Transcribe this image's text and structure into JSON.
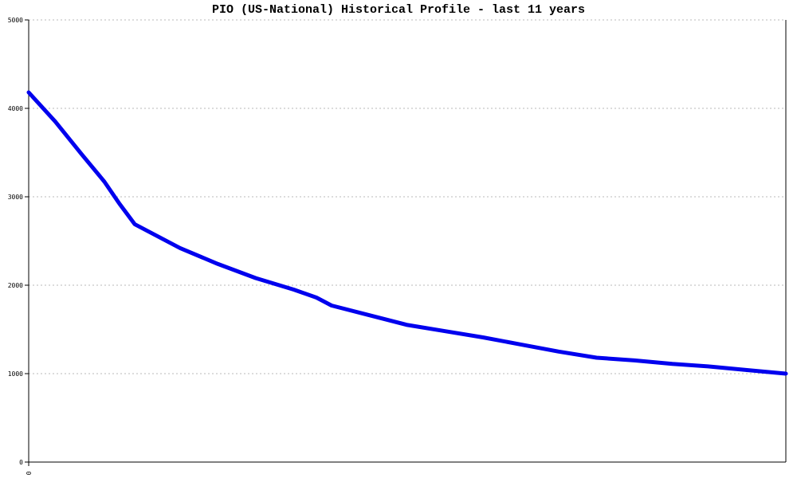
{
  "chart_data": {
    "type": "line",
    "title": "PIO (US-National) Historical Profile - last 11 years",
    "xlabel": "",
    "ylabel": "",
    "ylim": [
      0,
      5000
    ],
    "yticks": [
      0,
      1000,
      2000,
      3000,
      4000,
      5000
    ],
    "xticks": [
      "0"
    ],
    "grid": true,
    "line_color": "#0000ee",
    "series": [
      {
        "name": "",
        "points": [
          [
            0,
            4180
          ],
          [
            0.35,
            3850
          ],
          [
            0.7,
            3480
          ],
          [
            1.0,
            3170
          ],
          [
            1.2,
            2920
          ],
          [
            1.4,
            2690
          ],
          [
            1.6,
            2600
          ],
          [
            2.0,
            2420
          ],
          [
            2.5,
            2240
          ],
          [
            3.0,
            2080
          ],
          [
            3.5,
            1950
          ],
          [
            3.8,
            1860
          ],
          [
            4.0,
            1770
          ],
          [
            4.5,
            1660
          ],
          [
            5.0,
            1550
          ],
          [
            5.5,
            1480
          ],
          [
            6.0,
            1410
          ],
          [
            6.5,
            1330
          ],
          [
            7.0,
            1250
          ],
          [
            7.5,
            1180
          ],
          [
            8.0,
            1150
          ],
          [
            8.5,
            1110
          ],
          [
            9.0,
            1080
          ],
          [
            9.5,
            1040
          ],
          [
            10.0,
            1000
          ]
        ]
      }
    ]
  }
}
